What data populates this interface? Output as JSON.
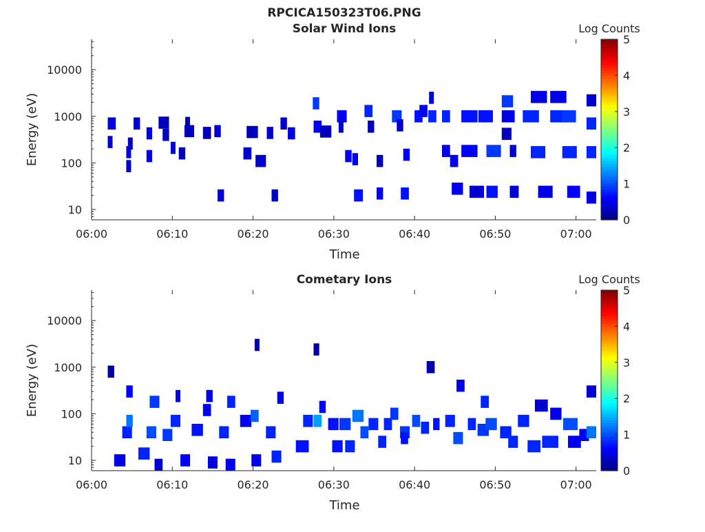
{
  "figure_title": "RPCICA150323T06.PNG",
  "colorbar_label": "Log Counts",
  "colorbar_ticks": [
    "0",
    "1",
    "2",
    "3",
    "4",
    "5"
  ],
  "chart_data": [
    {
      "type": "heatmap",
      "title": "Solar Wind Ions",
      "xlabel": "Time",
      "ylabel": "Energy (eV)",
      "x_tick_labels": [
        "06:00",
        "06:10",
        "06:20",
        "06:30",
        "06:40",
        "06:50",
        "07:00"
      ],
      "y_tick_labels": [
        "10",
        "100",
        "1000",
        "10000"
      ],
      "y_scale": "log",
      "ylim": [
        6,
        45000
      ],
      "xlim": [
        "06:00",
        "07:02.5"
      ],
      "colorbar": {
        "label": "Log Counts",
        "range": [
          0,
          5
        ],
        "colormap": "jet"
      },
      "cells": [
        [
          2,
          700,
          1,
          0.5
        ],
        [
          2,
          280,
          0.6,
          0.4
        ],
        [
          4.3,
          170,
          0.6,
          0.5
        ],
        [
          4.3,
          85,
          0.6,
          0.4
        ],
        [
          4.5,
          260,
          0.6,
          0.3
        ],
        [
          5.2,
          700,
          0.8,
          0.4
        ],
        [
          6.8,
          430,
          0.7,
          0.5
        ],
        [
          6.8,
          140,
          0.7,
          0.5
        ],
        [
          8.3,
          730,
          1.3,
          0.3
        ],
        [
          8.8,
          400,
          0.8,
          0.3
        ],
        [
          9.8,
          210,
          0.6,
          0.4
        ],
        [
          10.8,
          160,
          0.8,
          0.3
        ],
        [
          11.5,
          480,
          1.2,
          0.3
        ],
        [
          11.6,
          720,
          0.6,
          0.3
        ],
        [
          13.8,
          440,
          1,
          0.3
        ],
        [
          15.2,
          480,
          0.8,
          0.4
        ],
        [
          15.6,
          20,
          0.8,
          0.4
        ],
        [
          18.8,
          160,
          1,
          0.4
        ],
        [
          19.2,
          460,
          1.4,
          0.3
        ],
        [
          20.3,
          110,
          1.3,
          0.4
        ],
        [
          21.7,
          440,
          0.8,
          0.4
        ],
        [
          22.3,
          20,
          0.8,
          0.4
        ],
        [
          23.4,
          700,
          0.8,
          0.4
        ],
        [
          24.3,
          430,
          0.9,
          0.5
        ],
        [
          27.4,
          1900,
          0.8,
          0.9
        ],
        [
          27.5,
          600,
          1,
          0.6
        ],
        [
          28.3,
          470,
          1.4,
          0.3
        ],
        [
          30.4,
          1000,
          1.2,
          0.6
        ],
        [
          30.6,
          600,
          0.6,
          0.3
        ],
        [
          31.4,
          140,
          0.8,
          0.6
        ],
        [
          32.3,
          120,
          0.7,
          0.5
        ],
        [
          32.5,
          20,
          1.1,
          0.7
        ],
        [
          33.8,
          1300,
          1,
          0.8
        ],
        [
          34.2,
          600,
          0.8,
          0.3
        ],
        [
          35.3,
          110,
          0.8,
          0.3
        ],
        [
          35.3,
          22,
          0.8,
          0.6
        ],
        [
          37.2,
          1000,
          1.2,
          0.9
        ],
        [
          37.8,
          640,
          0.8,
          0.4
        ],
        [
          38.6,
          150,
          0.8,
          0.6
        ],
        [
          38.3,
          22,
          1,
          0.7
        ],
        [
          40,
          1000,
          1,
          0.7
        ],
        [
          40.6,
          1300,
          1,
          0.6
        ],
        [
          41.7,
          1000,
          1,
          0.8
        ],
        [
          41.8,
          2500,
          0.6,
          0.5
        ],
        [
          43.4,
          1000,
          1,
          0.8
        ],
        [
          43.4,
          180,
          1,
          0.5
        ],
        [
          44.4,
          110,
          1,
          0.5
        ],
        [
          44.6,
          28,
          1.4,
          0.6
        ],
        [
          45.8,
          1000,
          2,
          0.7
        ],
        [
          45.8,
          180,
          2,
          0.6
        ],
        [
          46.8,
          24,
          1.8,
          0.4
        ],
        [
          47.9,
          1000,
          1.8,
          0.7
        ],
        [
          48.9,
          180,
          1.8,
          0.9
        ],
        [
          48.9,
          24,
          1.4,
          0.7
        ],
        [
          50.8,
          2100,
          1.4,
          0.9
        ],
        [
          50.8,
          1000,
          1.6,
          0.5
        ],
        [
          50.8,
          420,
          1.2,
          0.3
        ],
        [
          51.8,
          180,
          0.8,
          0.4
        ],
        [
          51.8,
          24,
          1.1,
          0.4
        ],
        [
          53.4,
          1000,
          2,
          0.8
        ],
        [
          54.4,
          2600,
          2,
          0.5
        ],
        [
          54.4,
          170,
          1.8,
          0.8
        ],
        [
          55.3,
          24,
          1.8,
          0.5
        ],
        [
          56.8,
          1000,
          2,
          0.8
        ],
        [
          56.8,
          2600,
          2,
          0.5
        ],
        [
          58.3,
          1000,
          1.7,
          0.9
        ],
        [
          58.3,
          170,
          1.8,
          0.8
        ],
        [
          58.9,
          24,
          1.6,
          0.6
        ],
        [
          61.3,
          700,
          1.5,
          0.8
        ],
        [
          61.3,
          170,
          1.5,
          0.8
        ],
        [
          61.3,
          18,
          1.5,
          0.5
        ],
        [
          61.3,
          2200,
          1.5,
          0.4
        ]
      ]
    },
    {
      "type": "heatmap",
      "title": "Cometary Ions",
      "xlabel": "Time",
      "ylabel": "Energy (eV)",
      "x_tick_labels": [
        "06:00",
        "06:10",
        "06:20",
        "06:30",
        "06:40",
        "06:50",
        "07:00"
      ],
      "y_tick_labels": [
        "10",
        "100",
        "1000",
        "10000"
      ],
      "y_scale": "log",
      "ylim": [
        6,
        45000
      ],
      "xlim": [
        "06:00",
        "07:02.5"
      ],
      "colorbar": {
        "label": "Log Counts",
        "range": [
          0,
          5
        ],
        "colormap": "jet"
      },
      "cells": [
        [
          2,
          800,
          0.8,
          0.2
        ],
        [
          2.8,
          10,
          1.4,
          0.5
        ],
        [
          3.8,
          40,
          1.2,
          0.8
        ],
        [
          4.3,
          70,
          0.8,
          1.2
        ],
        [
          4.3,
          300,
          0.8,
          0.6
        ],
        [
          5.8,
          14,
          1.4,
          0.8
        ],
        [
          6.8,
          40,
          1.2,
          1.0
        ],
        [
          7.2,
          180,
          1.2,
          0.9
        ],
        [
          7.8,
          8,
          1,
          0.4
        ],
        [
          8.8,
          35,
          1.2,
          0.9
        ],
        [
          9.8,
          70,
          1.2,
          0.8
        ],
        [
          10.4,
          240,
          0.6,
          0.5
        ],
        [
          11,
          10,
          1.2,
          0.6
        ],
        [
          12.4,
          45,
          1.4,
          0.7
        ],
        [
          13.8,
          120,
          1,
          0.6
        ],
        [
          14.4,
          9,
          1.2,
          0.5
        ],
        [
          14.2,
          240,
          0.8,
          0.5
        ],
        [
          15.8,
          40,
          1.2,
          0.8
        ],
        [
          16.8,
          180,
          1,
          0.8
        ],
        [
          16.6,
          8,
          1.2,
          0.6
        ],
        [
          18.4,
          70,
          1.4,
          0.6
        ],
        [
          19.7,
          90,
          1,
          1.1
        ],
        [
          20.2,
          3000,
          0.6,
          0.2
        ],
        [
          19.8,
          10,
          1.2,
          0.5
        ],
        [
          21.6,
          40,
          1.2,
          0.8
        ],
        [
          23,
          220,
          0.8,
          0.6
        ],
        [
          22.3,
          12,
          1.2,
          0.8
        ],
        [
          25.3,
          20,
          1.6,
          0.7
        ],
        [
          26.2,
          70,
          1.2,
          0.8
        ],
        [
          27.5,
          70,
          1,
          1.4
        ],
        [
          27.5,
          2400,
          0.7,
          0.2
        ],
        [
          28.2,
          140,
          0.8,
          0.6
        ],
        [
          29.3,
          60,
          1.3,
          0.7
        ],
        [
          29.8,
          20,
          1.3,
          0.7
        ],
        [
          30.7,
          60,
          1.4,
          0.9
        ],
        [
          31.4,
          20,
          1.2,
          0.8
        ],
        [
          32.3,
          90,
          1.4,
          1.2
        ],
        [
          33.3,
          40,
          1,
          1.0
        ],
        [
          34.3,
          60,
          1.2,
          0.8
        ],
        [
          35.5,
          25,
          1,
          0.8
        ],
        [
          36.2,
          60,
          1,
          0.8
        ],
        [
          37,
          100,
          1,
          0.9
        ],
        [
          38.2,
          40,
          1.2,
          0.9
        ],
        [
          38.3,
          30,
          0.9,
          0.7
        ],
        [
          39.7,
          70,
          1,
          1.0
        ],
        [
          40.8,
          50,
          1,
          0.8
        ],
        [
          41.5,
          1000,
          1,
          0.2
        ],
        [
          42.3,
          60,
          0.8,
          0.7
        ],
        [
          43.8,
          70,
          1.2,
          0.8
        ],
        [
          44.8,
          30,
          1.2,
          1.0
        ],
        [
          45.2,
          400,
          1,
          0.5
        ],
        [
          46.6,
          60,
          1,
          0.8
        ],
        [
          47.8,
          45,
          1.4,
          0.9
        ],
        [
          48.2,
          180,
          1,
          0.8
        ],
        [
          48.8,
          60,
          1.4,
          1.0
        ],
        [
          50.6,
          40,
          1.4,
          0.8
        ],
        [
          51.6,
          25,
          1.2,
          0.8
        ],
        [
          52.8,
          70,
          1.4,
          0.8
        ],
        [
          54,
          20,
          1.6,
          0.8
        ],
        [
          54.9,
          150,
          1.6,
          0.4
        ],
        [
          55.8,
          25,
          2,
          0.8
        ],
        [
          56.8,
          100,
          1.4,
          0.5
        ],
        [
          58.4,
          60,
          1.8,
          1.0
        ],
        [
          59,
          25,
          1.6,
          0.6
        ],
        [
          60.4,
          35,
          1.2,
          0.6
        ],
        [
          61.3,
          40,
          1.4,
          1.2
        ],
        [
          61.3,
          300,
          1.4,
          0.4
        ]
      ]
    }
  ]
}
